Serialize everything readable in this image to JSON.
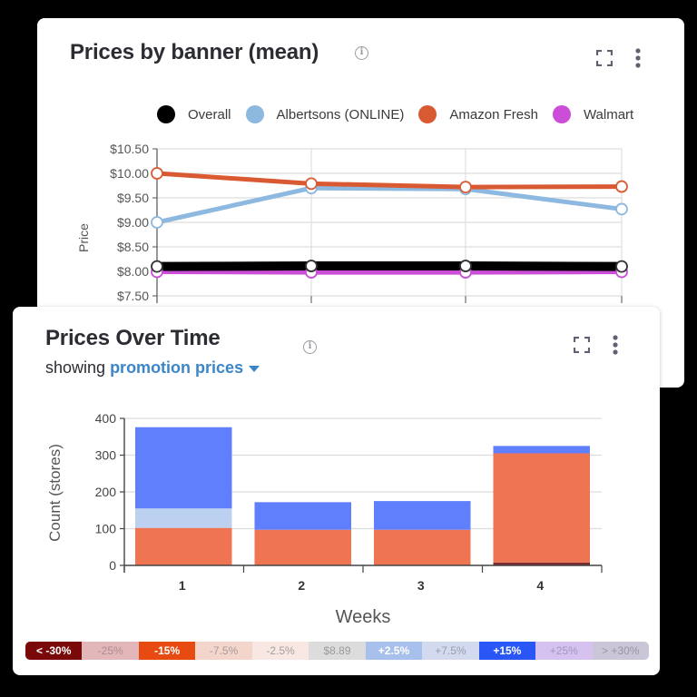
{
  "card_banner": {
    "title": "Prices by banner (mean)",
    "info_icon": "info-icon",
    "expand_icon": "expand-icon",
    "more_icon": "more-vertical-icon"
  },
  "card_time": {
    "title": "Prices Over Time",
    "subtitle_prefix": "showing",
    "subtitle_selection": "promotion prices",
    "info_icon": "info-icon",
    "expand_icon": "expand-icon",
    "more_icon": "more-vertical-icon"
  },
  "scale_legend": [
    {
      "label": "< -30%",
      "bg": "#7a0a0a",
      "fg": "#ffffff",
      "bold": true
    },
    {
      "label": "-25%",
      "bg": "#e3b7b9",
      "fg": "#a98e90",
      "bold": false
    },
    {
      "label": "-15%",
      "bg": "#e84b12",
      "fg": "#ffffff",
      "bold": true
    },
    {
      "label": "-7.5%",
      "bg": "#f4d5cc",
      "fg": "#a99a96",
      "bold": false
    },
    {
      "label": "-2.5%",
      "bg": "#f8e7e2",
      "fg": "#a3a0a0",
      "bold": false
    },
    {
      "label": "$8.89",
      "bg": "#dcdcdc",
      "fg": "#9a9a9a",
      "bold": false
    },
    {
      "label": "+2.5%",
      "bg": "#a7c0ec",
      "fg": "#ffffff",
      "bold": true
    },
    {
      "label": "+7.5%",
      "bg": "#d3daf0",
      "fg": "#9a9daa",
      "bold": false
    },
    {
      "label": "+15%",
      "bg": "#2a56f6",
      "fg": "#ffffff",
      "bold": true
    },
    {
      "label": "+25%",
      "bg": "#d5c2f1",
      "fg": "#a497b8",
      "bold": false
    },
    {
      "label": "> +30%",
      "bg": "#cbc5d8",
      "fg": "#9a94a6",
      "bold": false
    }
  ],
  "chart_data": [
    {
      "type": "line",
      "title": "Prices by banner (mean)",
      "xlabel": "",
      "ylabel": "Price",
      "x": [
        1,
        2,
        3,
        4
      ],
      "ylim": [
        7.5,
        10.5
      ],
      "yticks": [
        "$7.50",
        "$8.00",
        "$8.50",
        "$9.00",
        "$9.50",
        "$10.00",
        "$10.50"
      ],
      "grid": true,
      "legend_position": "top-right",
      "series": [
        {
          "name": "Overall",
          "color": "#000000",
          "values": [
            8.1,
            8.11,
            8.11,
            8.1
          ]
        },
        {
          "name": "Albertsons (ONLINE)",
          "color": "#8db8df",
          "values": [
            9.0,
            9.7,
            9.68,
            9.27
          ]
        },
        {
          "name": "Amazon Fresh",
          "color": "#d95a32",
          "values": [
            10.0,
            9.79,
            9.72,
            9.73
          ]
        },
        {
          "name": "Walmart",
          "color": "#cc4ed8",
          "values": [
            7.99,
            7.98,
            7.98,
            7.99
          ]
        }
      ]
    },
    {
      "type": "bar",
      "stacked": true,
      "title": "Prices Over Time",
      "xlabel": "Weeks",
      "ylabel": "Count (stores)",
      "categories": [
        "1",
        "2",
        "3",
        "4"
      ],
      "ylim": [
        0,
        400
      ],
      "yticks": [
        0,
        100,
        200,
        300,
        400
      ],
      "grid": true,
      "series": [
        {
          "name": "< -30%",
          "color": "#7a2a2a",
          "values": [
            0,
            0,
            0,
            8
          ]
        },
        {
          "name": "-15%",
          "color": "#ee7452",
          "values": [
            102,
            97,
            97,
            297
          ]
        },
        {
          "name": "+2.5%",
          "color": "#bcd0ef",
          "values": [
            53,
            0,
            0,
            0
          ]
        },
        {
          "name": "+15%",
          "color": "#5f7ffc",
          "values": [
            221,
            75,
            78,
            20
          ]
        }
      ]
    }
  ]
}
